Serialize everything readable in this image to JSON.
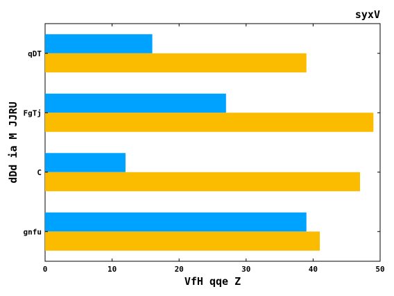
{
  "chart_data": {
    "type": "bar",
    "orientation": "horizontal",
    "title": "syxV",
    "title_position": "top-right",
    "xlabel": "VfH qqe Z",
    "ylabel": "dDd ia M JJRU",
    "xlim": [
      0,
      50
    ],
    "xticks": [
      0,
      10,
      20,
      30,
      40,
      50
    ],
    "categories": [
      "gnfu",
      "C",
      "FgTj",
      "qDT"
    ],
    "series": [
      {
        "color": "#00a2ff",
        "values": [
          39,
          12,
          27,
          16
        ]
      },
      {
        "color": "#fbbc00",
        "values": [
          41,
          47,
          49,
          39
        ]
      }
    ],
    "grid": false,
    "legend": "none"
  }
}
